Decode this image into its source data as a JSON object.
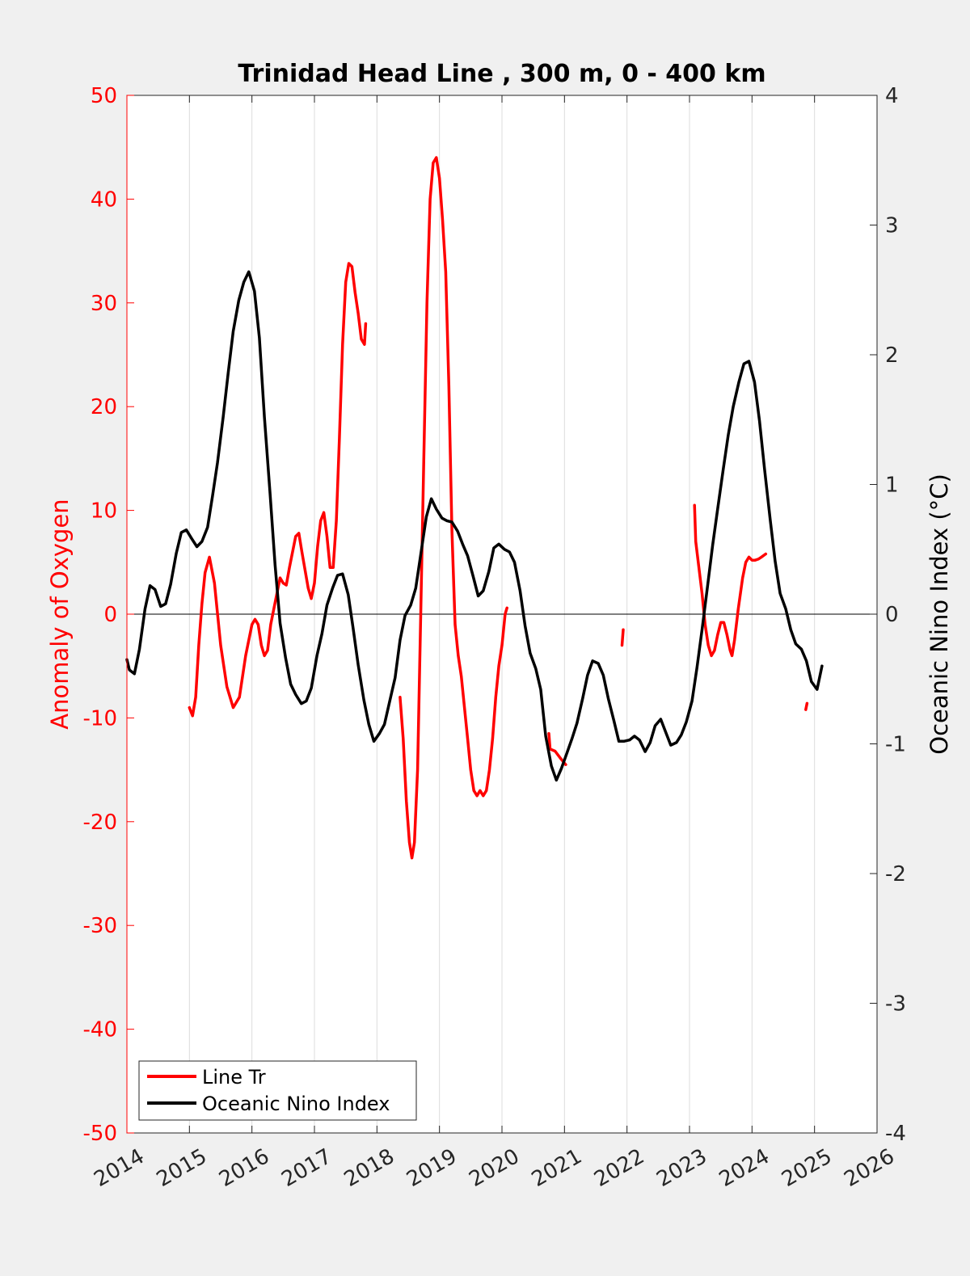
{
  "chart_data": {
    "type": "line",
    "title": "Trinidad Head Line , 300 m, 0 - 400 km",
    "xlabel": "",
    "ylabel_left": "Anomaly of Oxygen",
    "ylabel_right": "Oceanic Nino Index (°C)",
    "xlim": [
      2014,
      2026
    ],
    "ylim_left": [
      -50,
      50
    ],
    "ylim_right": [
      -4,
      4
    ],
    "xticks": [
      "2014",
      "2015",
      "2016",
      "2017",
      "2018",
      "2019",
      "2020",
      "2021",
      "2022",
      "2023",
      "2024",
      "2025",
      "2026"
    ],
    "yticks_left": [
      "-50",
      "-40",
      "-30",
      "-20",
      "-10",
      "0",
      "10",
      "20",
      "30",
      "40",
      "50"
    ],
    "yticks_right": [
      "-4",
      "-3",
      "-2",
      "-1",
      "0",
      "1",
      "2",
      "3",
      "4"
    ],
    "grid": "vertical",
    "legend_position": "bottom-left",
    "colors": {
      "left_axis": "#ff0000",
      "right_axis": "#000000",
      "zero_line": "#000000",
      "grid": "#dcdcdc",
      "plot_bg": "#ffffff",
      "figure_bg": "#f0f0f0"
    },
    "series": [
      {
        "name": "Line Tr",
        "axis": "left",
        "color": "#ff0000",
        "segments": [
          [
            [
              2015.0,
              -9.0
            ],
            [
              2015.05,
              -9.8
            ],
            [
              2015.1,
              -8.0
            ],
            [
              2015.15,
              -3.0
            ],
            [
              2015.2,
              1.0
            ],
            [
              2015.25,
              4.0
            ],
            [
              2015.32,
              5.5
            ],
            [
              2015.4,
              3.0
            ],
            [
              2015.5,
              -3.0
            ],
            [
              2015.6,
              -7.0
            ],
            [
              2015.7,
              -9.0
            ],
            [
              2015.8,
              -8.0
            ],
            [
              2015.9,
              -4.0
            ],
            [
              2016.0,
              -1.0
            ],
            [
              2016.05,
              -0.5
            ],
            [
              2016.1,
              -1.0
            ],
            [
              2016.15,
              -3.0
            ],
            [
              2016.2,
              -4.0
            ],
            [
              2016.25,
              -3.5
            ],
            [
              2016.3,
              -1.0
            ],
            [
              2016.4,
              2.0
            ],
            [
              2016.45,
              3.5
            ],
            [
              2016.5,
              3.0
            ],
            [
              2016.55,
              2.8
            ],
            [
              2016.6,
              4.5
            ],
            [
              2016.7,
              7.5
            ],
            [
              2016.75,
              7.8
            ],
            [
              2016.8,
              6.0
            ],
            [
              2016.9,
              2.5
            ],
            [
              2016.95,
              1.5
            ],
            [
              2017.0,
              3.0
            ],
            [
              2017.05,
              6.5
            ],
            [
              2017.1,
              9.0
            ],
            [
              2017.15,
              9.8
            ],
            [
              2017.2,
              7.5
            ],
            [
              2017.25,
              4.5
            ],
            [
              2017.3,
              4.5
            ],
            [
              2017.35,
              9.0
            ],
            [
              2017.4,
              17.0
            ],
            [
              2017.45,
              26.0
            ],
            [
              2017.5,
              32.0
            ],
            [
              2017.55,
              33.8
            ],
            [
              2017.6,
              33.5
            ],
            [
              2017.65,
              31.0
            ],
            [
              2017.7,
              29.0
            ],
            [
              2017.75,
              26.5
            ],
            [
              2017.8,
              26.0
            ],
            [
              2017.82,
              28.0
            ]
          ],
          [
            [
              2018.37,
              -8.0
            ],
            [
              2018.42,
              -12.0
            ],
            [
              2018.47,
              -18.0
            ],
            [
              2018.52,
              -22.0
            ],
            [
              2018.56,
              -23.5
            ],
            [
              2018.6,
              -22.0
            ],
            [
              2018.65,
              -15.0
            ],
            [
              2018.7,
              0.0
            ],
            [
              2018.75,
              15.0
            ],
            [
              2018.8,
              30.0
            ],
            [
              2018.85,
              40.0
            ],
            [
              2018.9,
              43.5
            ],
            [
              2018.95,
              44.0
            ],
            [
              2019.0,
              42.0
            ],
            [
              2019.05,
              38.0
            ],
            [
              2019.1,
              33.0
            ],
            [
              2019.15,
              22.0
            ],
            [
              2019.2,
              8.0
            ],
            [
              2019.25,
              -1.0
            ],
            [
              2019.3,
              -4.0
            ],
            [
              2019.35,
              -6.0
            ],
            [
              2019.4,
              -9.0
            ],
            [
              2019.45,
              -12.0
            ],
            [
              2019.5,
              -15.0
            ],
            [
              2019.55,
              -17.0
            ],
            [
              2019.6,
              -17.5
            ],
            [
              2019.65,
              -17.0
            ],
            [
              2019.7,
              -17.5
            ],
            [
              2019.75,
              -17.0
            ],
            [
              2019.8,
              -15.0
            ],
            [
              2019.85,
              -12.0
            ],
            [
              2019.9,
              -8.0
            ],
            [
              2019.95,
              -5.0
            ],
            [
              2020.0,
              -3.0
            ],
            [
              2020.05,
              0.0
            ],
            [
              2020.08,
              0.6
            ]
          ],
          [
            [
              2020.75,
              -11.5
            ],
            [
              2020.77,
              -13.0
            ],
            [
              2020.85,
              -13.2
            ],
            [
              2020.95,
              -14.0
            ],
            [
              2021.02,
              -14.5
            ]
          ],
          [
            [
              2021.92,
              -3.0
            ],
            [
              2021.94,
              -1.5
            ]
          ],
          [
            [
              2023.08,
              10.5
            ],
            [
              2023.1,
              7.0
            ],
            [
              2023.15,
              4.5
            ],
            [
              2023.2,
              2.0
            ],
            [
              2023.25,
              -1.0
            ],
            [
              2023.3,
              -3.0
            ],
            [
              2023.35,
              -4.0
            ],
            [
              2023.4,
              -3.5
            ],
            [
              2023.45,
              -2.0
            ],
            [
              2023.5,
              -0.8
            ],
            [
              2023.55,
              -0.8
            ],
            [
              2023.6,
              -2.0
            ],
            [
              2023.65,
              -3.5
            ],
            [
              2023.68,
              -4.0
            ],
            [
              2023.72,
              -2.5
            ],
            [
              2023.78,
              0.5
            ],
            [
              2023.85,
              3.5
            ],
            [
              2023.9,
              5.0
            ],
            [
              2023.95,
              5.5
            ],
            [
              2024.0,
              5.2
            ],
            [
              2024.05,
              5.2
            ],
            [
              2024.1,
              5.3
            ],
            [
              2024.15,
              5.5
            ],
            [
              2024.22,
              5.8
            ]
          ],
          [
            [
              2024.86,
              -9.2
            ],
            [
              2024.88,
              -8.6
            ]
          ]
        ]
      },
      {
        "name": "Oceanic Nino Index",
        "axis": "right",
        "color": "#000000",
        "segments": [
          [
            [
              2014.0,
              -0.35
            ],
            [
              2014.04,
              -0.43
            ],
            [
              2014.12,
              -0.46
            ],
            [
              2014.2,
              -0.27
            ],
            [
              2014.29,
              0.04
            ],
            [
              2014.37,
              0.22
            ],
            [
              2014.45,
              0.19
            ],
            [
              2014.54,
              0.06
            ],
            [
              2014.62,
              0.08
            ],
            [
              2014.7,
              0.23
            ],
            [
              2014.79,
              0.47
            ],
            [
              2014.87,
              0.63
            ],
            [
              2014.95,
              0.65
            ],
            [
              2015.04,
              0.58
            ],
            [
              2015.12,
              0.52
            ],
            [
              2015.2,
              0.56
            ],
            [
              2015.29,
              0.67
            ],
            [
              2015.37,
              0.91
            ],
            [
              2015.45,
              1.17
            ],
            [
              2015.54,
              1.52
            ],
            [
              2015.62,
              1.86
            ],
            [
              2015.7,
              2.18
            ],
            [
              2015.79,
              2.42
            ],
            [
              2015.87,
              2.56
            ],
            [
              2015.95,
              2.64
            ],
            [
              2016.04,
              2.49
            ],
            [
              2016.12,
              2.13
            ],
            [
              2016.2,
              1.52
            ],
            [
              2016.29,
              0.93
            ],
            [
              2016.37,
              0.38
            ],
            [
              2016.45,
              -0.07
            ],
            [
              2016.54,
              -0.34
            ],
            [
              2016.62,
              -0.54
            ],
            [
              2016.7,
              -0.62
            ],
            [
              2016.79,
              -0.69
            ],
            [
              2016.87,
              -0.67
            ],
            [
              2016.95,
              -0.57
            ],
            [
              2017.04,
              -0.32
            ],
            [
              2017.12,
              -0.15
            ],
            [
              2017.2,
              0.07
            ],
            [
              2017.29,
              0.2
            ],
            [
              2017.37,
              0.3
            ],
            [
              2017.45,
              0.31
            ],
            [
              2017.54,
              0.15
            ],
            [
              2017.62,
              -0.11
            ],
            [
              2017.7,
              -0.39
            ],
            [
              2017.79,
              -0.66
            ],
            [
              2017.87,
              -0.85
            ],
            [
              2017.95,
              -0.98
            ],
            [
              2018.04,
              -0.92
            ],
            [
              2018.12,
              -0.85
            ],
            [
              2018.2,
              -0.68
            ],
            [
              2018.29,
              -0.49
            ],
            [
              2018.37,
              -0.2
            ],
            [
              2018.45,
              -0.01
            ],
            [
              2018.54,
              0.07
            ],
            [
              2018.62,
              0.2
            ],
            [
              2018.7,
              0.46
            ],
            [
              2018.79,
              0.75
            ],
            [
              2018.87,
              0.89
            ],
            [
              2018.95,
              0.81
            ],
            [
              2019.04,
              0.74
            ],
            [
              2019.12,
              0.72
            ],
            [
              2019.2,
              0.71
            ],
            [
              2019.29,
              0.64
            ],
            [
              2019.37,
              0.54
            ],
            [
              2019.45,
              0.45
            ],
            [
              2019.54,
              0.29
            ],
            [
              2019.62,
              0.14
            ],
            [
              2019.7,
              0.18
            ],
            [
              2019.79,
              0.33
            ],
            [
              2019.87,
              0.51
            ],
            [
              2019.95,
              0.54
            ],
            [
              2020.04,
              0.5
            ],
            [
              2020.12,
              0.48
            ],
            [
              2020.2,
              0.4
            ],
            [
              2020.29,
              0.18
            ],
            [
              2020.37,
              -0.09
            ],
            [
              2020.45,
              -0.3
            ],
            [
              2020.54,
              -0.42
            ],
            [
              2020.62,
              -0.58
            ],
            [
              2020.7,
              -0.94
            ],
            [
              2020.79,
              -1.17
            ],
            [
              2020.87,
              -1.28
            ],
            [
              2020.95,
              -1.19
            ],
            [
              2021.04,
              -1.07
            ],
            [
              2021.12,
              -0.96
            ],
            [
              2021.2,
              -0.84
            ],
            [
              2021.29,
              -0.65
            ],
            [
              2021.37,
              -0.47
            ],
            [
              2021.45,
              -0.36
            ],
            [
              2021.54,
              -0.38
            ],
            [
              2021.62,
              -0.47
            ],
            [
              2021.7,
              -0.65
            ],
            [
              2021.79,
              -0.82
            ],
            [
              2021.87,
              -0.98
            ],
            [
              2021.95,
              -0.98
            ],
            [
              2022.04,
              -0.97
            ],
            [
              2022.12,
              -0.94
            ],
            [
              2022.2,
              -0.97
            ],
            [
              2022.29,
              -1.06
            ],
            [
              2022.37,
              -0.99
            ],
            [
              2022.45,
              -0.86
            ],
            [
              2022.54,
              -0.81
            ],
            [
              2022.62,
              -0.91
            ],
            [
              2022.7,
              -1.01
            ],
            [
              2022.79,
              -0.99
            ],
            [
              2022.87,
              -0.93
            ],
            [
              2022.95,
              -0.83
            ],
            [
              2023.04,
              -0.67
            ],
            [
              2023.12,
              -0.41
            ],
            [
              2023.2,
              -0.12
            ],
            [
              2023.29,
              0.22
            ],
            [
              2023.37,
              0.53
            ],
            [
              2023.45,
              0.81
            ],
            [
              2023.54,
              1.12
            ],
            [
              2023.62,
              1.38
            ],
            [
              2023.7,
              1.6
            ],
            [
              2023.79,
              1.79
            ],
            [
              2023.87,
              1.93
            ],
            [
              2023.95,
              1.95
            ],
            [
              2024.04,
              1.79
            ],
            [
              2024.12,
              1.49
            ],
            [
              2024.2,
              1.12
            ],
            [
              2024.29,
              0.73
            ],
            [
              2024.37,
              0.41
            ],
            [
              2024.45,
              0.16
            ],
            [
              2024.54,
              0.04
            ],
            [
              2024.62,
              -0.12
            ],
            [
              2024.7,
              -0.23
            ],
            [
              2024.79,
              -0.27
            ],
            [
              2024.87,
              -0.36
            ],
            [
              2024.95,
              -0.52
            ],
            [
              2025.04,
              -0.58
            ],
            [
              2025.12,
              -0.4
            ]
          ]
        ]
      }
    ]
  }
}
